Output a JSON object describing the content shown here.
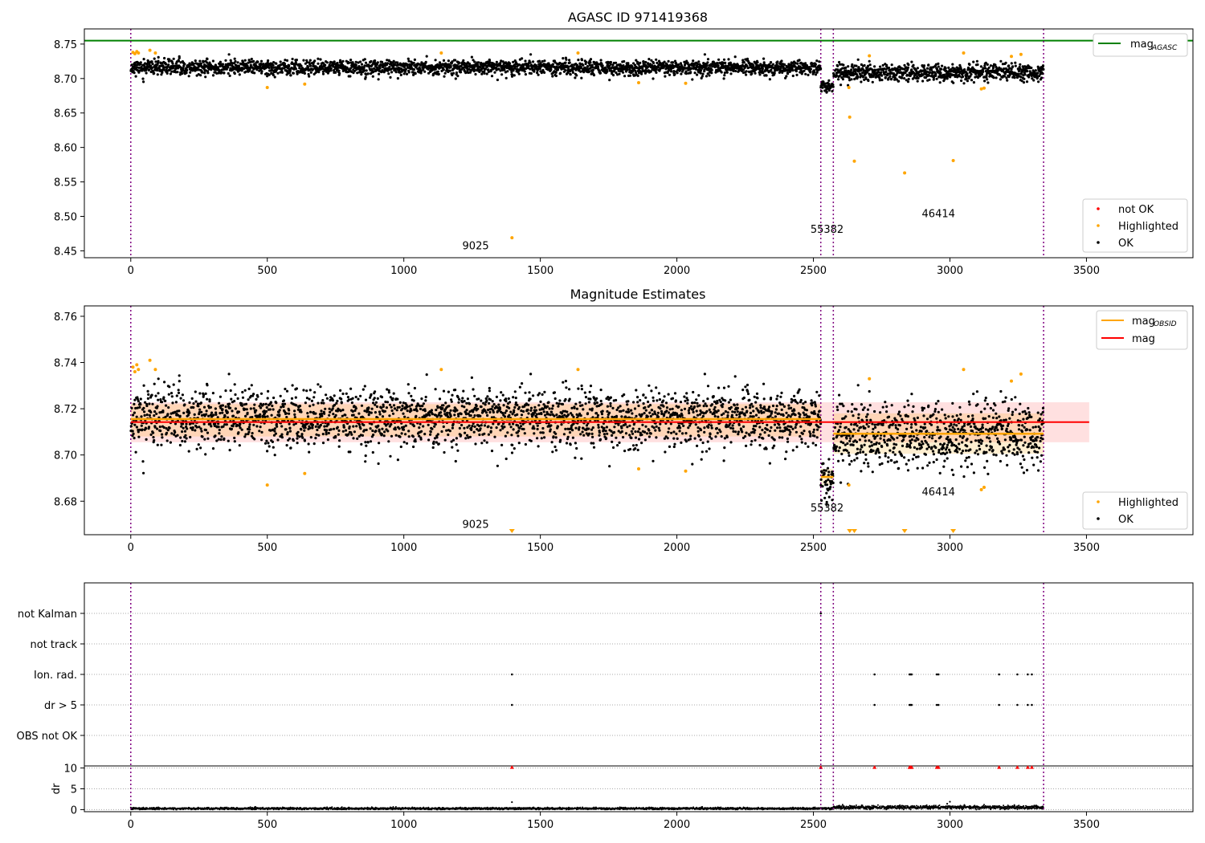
{
  "chart_data": [
    {
      "type": "scatter",
      "title": "AGASC ID 971419368",
      "xlim": [
        -170,
        3890
      ],
      "ylim": [
        8.44,
        8.772
      ],
      "x_ticks": [
        0,
        500,
        1000,
        1500,
        2000,
        2500,
        3000,
        3500
      ],
      "y_ticks": [
        8.45,
        8.5,
        8.55,
        8.6,
        8.65,
        8.7,
        8.75
      ],
      "y_tick_labels": [
        "8.45",
        "8.50",
        "8.55",
        "8.60",
        "8.65",
        "8.70",
        "8.75"
      ],
      "obs_boundaries": [
        0,
        2527,
        2573,
        3343
      ],
      "obs_labels": [
        {
          "text": "9025",
          "x": 1263,
          "y": 8.452
        },
        {
          "text": "55382",
          "x": 2550,
          "y": 8.476
        },
        {
          "text": "46414",
          "x": 2958,
          "y": 8.499
        }
      ],
      "reference_line": {
        "name": "mag_AGASC",
        "value": 8.755,
        "color": "#008000"
      },
      "ok_segments": [
        {
          "x0": 0,
          "x1": 2527,
          "mean": 8.716,
          "sd": 0.0055
        },
        {
          "x0": 2527,
          "x1": 2573,
          "mean": 8.689,
          "sd": 0.004
        },
        {
          "x0": 2573,
          "x1": 3343,
          "mean": 8.709,
          "sd": 0.0065
        }
      ],
      "highlighted_points": [
        [
          8,
          8.738
        ],
        [
          15,
          8.736
        ],
        [
          22,
          8.739
        ],
        [
          28,
          8.737
        ],
        [
          70,
          8.741
        ],
        [
          90,
          8.737
        ],
        [
          500,
          8.687
        ],
        [
          637,
          8.692
        ],
        [
          1137,
          8.737
        ],
        [
          1396,
          8.469
        ],
        [
          1638,
          8.737
        ],
        [
          1860,
          8.694
        ],
        [
          2032,
          8.693
        ],
        [
          2630,
          8.687
        ],
        [
          2633,
          8.644
        ],
        [
          2650,
          8.58
        ],
        [
          2705,
          8.733
        ],
        [
          2834,
          8.563
        ],
        [
          3012,
          8.581
        ],
        [
          3050,
          8.737
        ],
        [
          3115,
          8.685
        ],
        [
          3125,
          8.686
        ],
        [
          3225,
          8.732
        ],
        [
          3260,
          8.735
        ]
      ],
      "legend_top": [
        {
          "name": "mag",
          "subscript": "AGASC",
          "color": "#008000"
        }
      ],
      "legend_bottom": [
        {
          "name": "not OK",
          "color": "#ff0000"
        },
        {
          "name": "Highlighted",
          "color": "#ffa500"
        },
        {
          "name": "OK",
          "color": "#000000"
        }
      ]
    },
    {
      "type": "scatter",
      "title": "Magnitude Estimates",
      "xlim": [
        -170,
        3890
      ],
      "ylim": [
        8.6655,
        8.7645
      ],
      "x_ticks": [
        0,
        500,
        1000,
        1500,
        2000,
        2500,
        3000,
        3500
      ],
      "y_ticks": [
        8.68,
        8.7,
        8.72,
        8.74,
        8.76
      ],
      "y_tick_labels": [
        "8.68",
        "8.70",
        "8.72",
        "8.74",
        "8.76"
      ],
      "obs_boundaries": [
        0,
        2527,
        2573,
        3343
      ],
      "obs_labels": [
        {
          "text": "9025",
          "x": 1263,
          "y": 8.6685
        },
        {
          "text": "55382",
          "x": 2550,
          "y": 8.6755
        },
        {
          "text": "46414",
          "x": 2958,
          "y": 8.6825
        }
      ],
      "mag": {
        "value": 8.7142,
        "band": [
          8.7055,
          8.7228
        ],
        "x_range": [
          0,
          3510
        ],
        "color": "#ff0000"
      },
      "mag_obsid": [
        {
          "x0": 0,
          "x1": 2527,
          "value": 8.7155,
          "band": [
            8.708,
            8.722
          ]
        },
        {
          "x0": 2527,
          "x1": 2573,
          "value": 8.6905,
          "band": [
            8.687,
            8.694
          ]
        },
        {
          "x0": 2573,
          "x1": 3343,
          "value": 8.7092,
          "band": [
            8.7005,
            8.718
          ]
        }
      ],
      "ok_segments": [
        {
          "x0": 0,
          "x1": 2527,
          "mean": 8.716,
          "sd": 0.0055
        },
        {
          "x0": 2527,
          "x1": 2573,
          "mean": 8.689,
          "sd": 0.004
        },
        {
          "x0": 2573,
          "x1": 3343,
          "mean": 8.709,
          "sd": 0.0065
        }
      ],
      "highlighted_points": [
        [
          8,
          8.738
        ],
        [
          15,
          8.736
        ],
        [
          22,
          8.739
        ],
        [
          28,
          8.737
        ],
        [
          70,
          8.741
        ],
        [
          90,
          8.737
        ],
        [
          500,
          8.687
        ],
        [
          637,
          8.692
        ],
        [
          1137,
          8.737
        ],
        [
          1638,
          8.737
        ],
        [
          1860,
          8.694
        ],
        [
          2032,
          8.693
        ],
        [
          2630,
          8.687
        ],
        [
          2705,
          8.733
        ],
        [
          3050,
          8.737
        ],
        [
          3115,
          8.685
        ],
        [
          3125,
          8.686
        ],
        [
          3225,
          8.732
        ],
        [
          3260,
          8.735
        ]
      ],
      "clipped_low_x": [
        1396,
        2633,
        2650,
        2834,
        3012
      ],
      "legend_top": [
        {
          "name": "mag",
          "subscript": "OBSID",
          "color": "#ffa500"
        },
        {
          "name": "mag",
          "subscript": "",
          "color": "#ff0000"
        }
      ],
      "legend_bottom": [
        {
          "name": "Highlighted",
          "color": "#ffa500"
        },
        {
          "name": "OK",
          "color": "#000000"
        }
      ]
    },
    {
      "type": "scatter",
      "xlim": [
        -170,
        3890
      ],
      "x_ticks": [
        0,
        500,
        1000,
        1500,
        2000,
        2500,
        3000,
        3500
      ],
      "obs_boundaries": [
        0,
        2527,
        2573,
        3343
      ],
      "flag_categories": [
        "not Kalman",
        "not track",
        "Ion. rad.",
        "dr > 5",
        "OBS not OK"
      ],
      "flag_points": {
        "not Kalman": [
          2527
        ],
        "not track": [],
        "Ion. rad.": [
          1396,
          2724,
          2852,
          2856,
          2860,
          2952,
          2958,
          3180,
          3247,
          3285,
          3300
        ],
        "dr > 5": [
          1396,
          2724,
          2852,
          2856,
          2860,
          2952,
          2958,
          3180,
          3247,
          3285,
          3300
        ],
        "OBS not OK": []
      },
      "dr": {
        "ylabel": "dr",
        "ylim": [
          -0.5,
          10.5
        ],
        "y_ticks": [
          0,
          5,
          10
        ],
        "clipped_high_x": [
          1396,
          2527,
          2724,
          2852,
          2856,
          2860,
          2952,
          2958,
          3180,
          3247,
          3285,
          3300
        ],
        "outliers": [
          [
            1396,
            1.8
          ],
          [
            3000,
            1.9
          ],
          [
            2990,
            1.4
          ]
        ],
        "segments": [
          {
            "x0": 0,
            "x1": 2573,
            "mean": 0.25,
            "sd": 0.12
          },
          {
            "x0": 2573,
            "x1": 3343,
            "mean": 0.55,
            "sd": 0.22
          }
        ]
      }
    }
  ]
}
